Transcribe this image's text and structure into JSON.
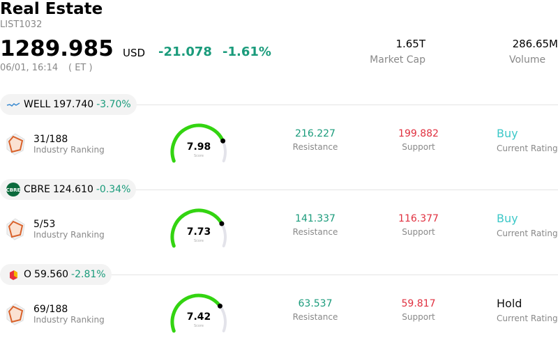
{
  "header": {
    "title": "Real Estate",
    "code": "LIST1032",
    "price": "1289.985",
    "currency": "USD",
    "change": "-21.078",
    "change_pct": "-1.61%",
    "time": "06/01, 16:14",
    "tz": "( ET )"
  },
  "stats": [
    {
      "value": "1.65T",
      "label": "Market Cap"
    },
    {
      "value": "286.65M",
      "label": "Volume"
    }
  ],
  "score_scale": [
    0,
    10
  ],
  "stocks": [
    {
      "ticker": "WELL",
      "price": "197.740",
      "change": "-3.70%",
      "ranking": "31/188",
      "ranking_label": "Industry Ranking",
      "score": 7.98,
      "score_label": "Score",
      "resistance": "216.227",
      "resistance_label": "Resistance",
      "support": "199.882",
      "support_label": "Support",
      "rating": "Buy",
      "rating_label": "Current Rating"
    },
    {
      "ticker": "CBRE",
      "price": "124.610",
      "change": "-0.34%",
      "ranking": "5/53",
      "ranking_label": "Industry Ranking",
      "score": 7.73,
      "score_label": "Score",
      "resistance": "141.337",
      "resistance_label": "Resistance",
      "support": "116.377",
      "support_label": "Support",
      "rating": "Buy",
      "rating_label": "Current Rating"
    },
    {
      "ticker": "O",
      "price": "59.560",
      "change": "-2.81%",
      "ranking": "69/188",
      "ranking_label": "Industry Ranking",
      "score": 7.42,
      "score_label": "Score",
      "resistance": "63.537",
      "resistance_label": "Resistance",
      "support": "59.817",
      "support_label": "Support",
      "rating": "Hold",
      "rating_label": "Current Rating"
    }
  ]
}
